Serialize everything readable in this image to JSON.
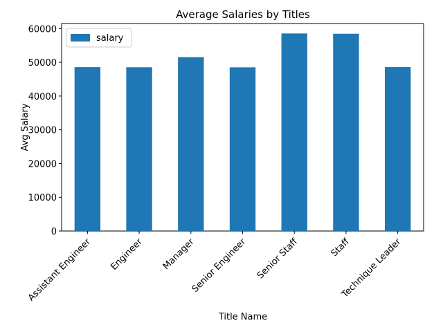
{
  "chart_data": {
    "type": "bar",
    "title": "Average Salaries by Titles",
    "xlabel": "Title Name",
    "ylabel": "Avg Salary",
    "categories": [
      "Assistant Engineer",
      "Engineer",
      "Manager",
      "Senior Engineer",
      "Senior Staff",
      "Staff",
      "Technique Leader"
    ],
    "series": [
      {
        "name": "salary",
        "values": [
          48560,
          48530,
          51530,
          48510,
          58550,
          58470,
          48580
        ],
        "color": "#1f77b4"
      }
    ],
    "ylim": [
      0,
      61500
    ],
    "yticks": [
      0,
      10000,
      20000,
      30000,
      40000,
      50000,
      60000
    ],
    "ytick_labels": [
      "0",
      "10000",
      "20000",
      "30000",
      "40000",
      "50000",
      "60000"
    ],
    "grid": false,
    "legend_position": "top-left"
  }
}
